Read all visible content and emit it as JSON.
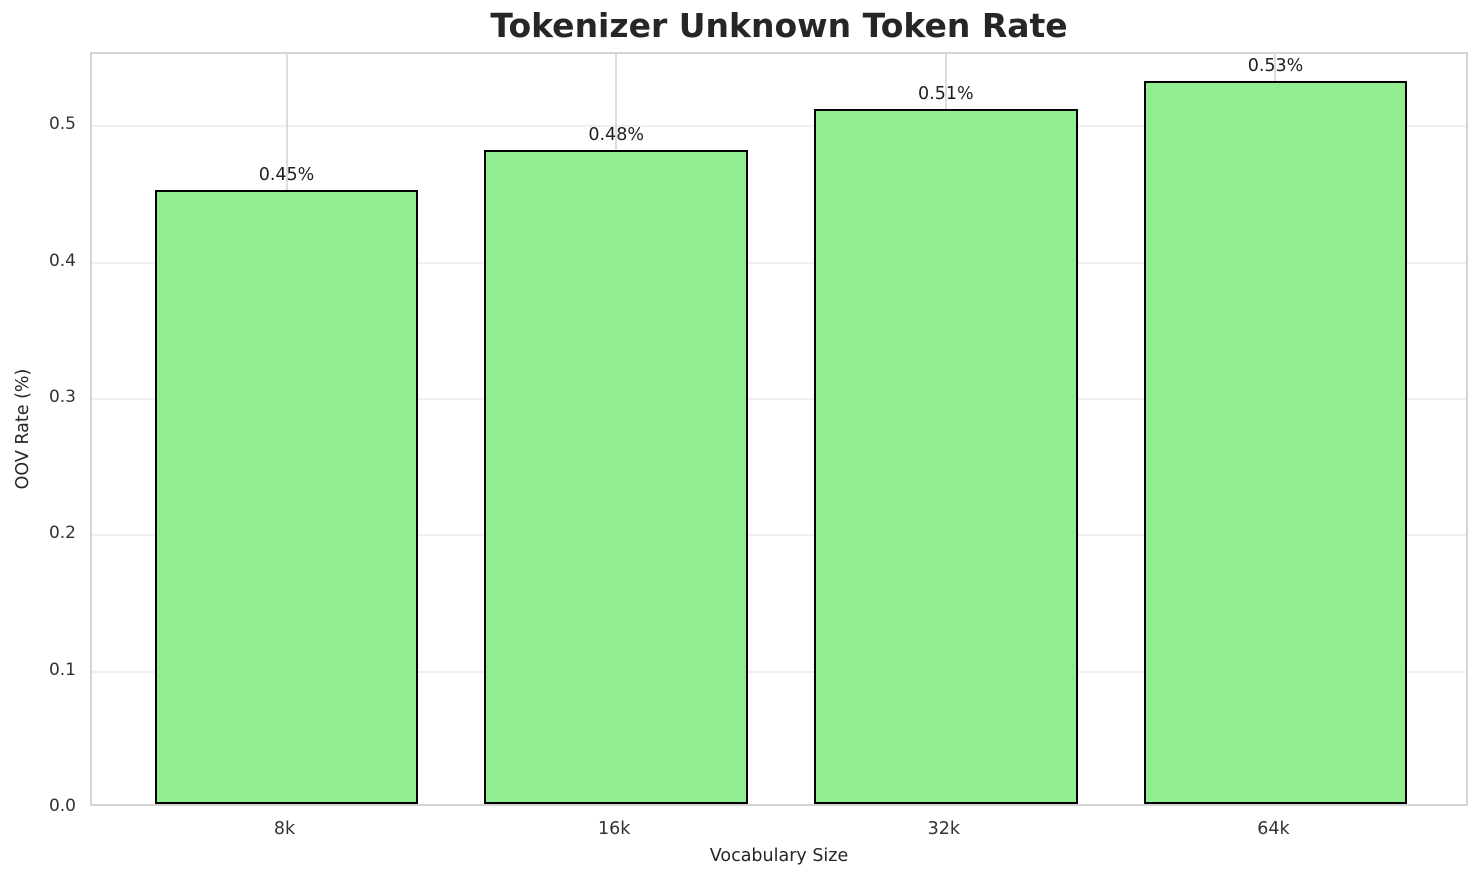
{
  "chart_data": {
    "type": "bar",
    "title": "Tokenizer Unknown Token Rate",
    "xlabel": "Vocabulary Size",
    "ylabel": "OOV Rate (%)",
    "categories": [
      "8k",
      "16k",
      "32k",
      "64k"
    ],
    "values": [
      0.45,
      0.48,
      0.51,
      0.53
    ],
    "bar_labels": [
      "0.45%",
      "0.48%",
      "0.51%",
      "0.53%"
    ],
    "yticks": [
      0.0,
      0.1,
      0.2,
      0.3,
      0.4,
      0.5
    ],
    "ytick_labels": [
      "0.0",
      "0.1",
      "0.2",
      "0.3",
      "0.4",
      "0.5"
    ],
    "ylim": [
      0,
      0.553
    ],
    "grid": true,
    "legend_position": "none",
    "bar_width_fraction": 0.8,
    "colors": {
      "bar_fill": "#90EE90",
      "bar_edge": "#000000",
      "grid_horizontal": "#efefef",
      "grid_vertical": "#dcdcdc",
      "plot_border": "#d4d4d4",
      "title_text": "#262626",
      "tick_text": "#333333",
      "label_text": "#262626",
      "background": "#ffffff"
    }
  }
}
